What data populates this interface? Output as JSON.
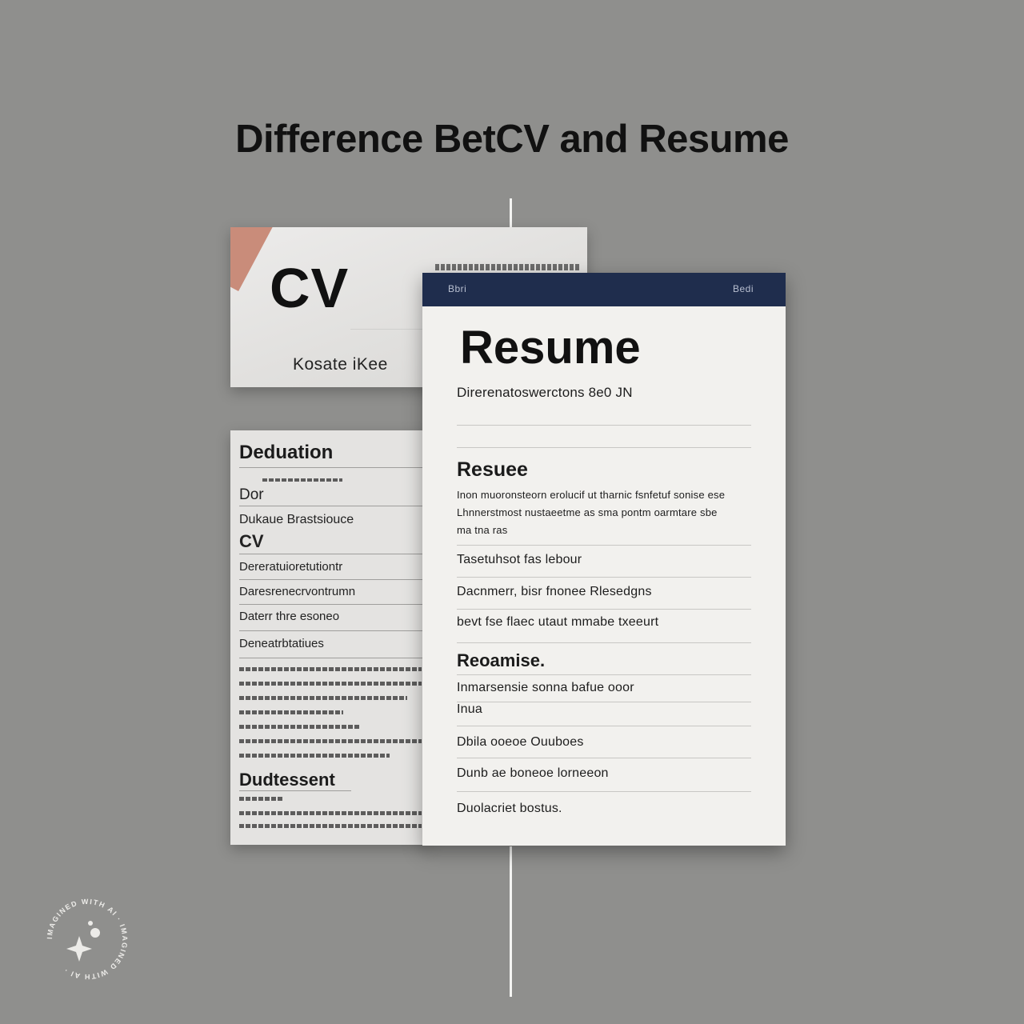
{
  "page": {
    "title": "Difference BetCV and Resume"
  },
  "cv_card": {
    "label": "CV",
    "subtitle": "Kosate iKee"
  },
  "cv_doc": {
    "heading_1": "Deduation",
    "line_1": "Dor",
    "line_2": "Dukaue Brastsiouce",
    "line_3": "CV",
    "line_4": "Dereratuioretutiontr",
    "line_5": "Daresrenecrvontrumn",
    "line_6": "Daterr thre esoneo",
    "line_7": "Deneatrbtatiues",
    "heading_2": "Dudtessent"
  },
  "resume_doc": {
    "header_left": "Bbri",
    "header_right": "Bedi",
    "title": "Resume",
    "subtitle": "Direrenatoswerctons 8e0 JN",
    "section_1": "Resuee",
    "para_1": "Inon muoronsteorn erolucif ut tharnic fsnfetuf sonise ese",
    "para_2": "Lhnnerstmost nustaeetme as sma pontm oarmtare sbe",
    "para_3": "ma tna ras",
    "item_1": "Tasetuhsot fas  lebour",
    "item_2": "Dacnmerr, bisr  fnonee  Rlesedgns",
    "item_3": "bevt  fse flaec  utaut mmabe txeeurt",
    "section_2": "Reoamise.",
    "item_4": "Inmarsensie sonna bafue ooor",
    "item_5": "Inua",
    "item_6": "Dbila  ooeoe Ouuboes",
    "item_7": "Dunb ae boneoe lorneeon",
    "item_8": "Duolacriet bostus."
  },
  "watermark": {
    "text": "IMAGINED WITH AI · IMAGINED WITH AI ·"
  },
  "colors": {
    "background": "#8f8f8d",
    "resume_header": "#1f2d4d",
    "cv_accent": "#c98c7a"
  }
}
